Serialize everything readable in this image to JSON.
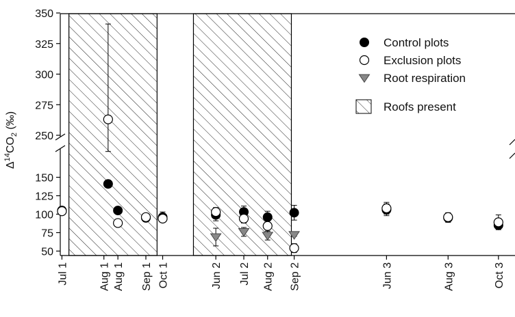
{
  "chart_data": {
    "type": "scatter",
    "title": "",
    "ylabel": "Δ14CO2 (‰)",
    "ylabel_parts": [
      "Δ",
      "14",
      "CO",
      "2",
      " (‰)"
    ],
    "xlabel": "",
    "axis_break": true,
    "y_segments": [
      {
        "range": [
          45,
          155
        ],
        "ticks": [
          50,
          75,
          100,
          125,
          150
        ]
      },
      {
        "range": [
          245,
          350
        ],
        "ticks": [
          250,
          275,
          300,
          325,
          350
        ]
      }
    ],
    "x_ticks": [
      {
        "label": "Jul 1",
        "x": 1
      },
      {
        "label": "Aug 1",
        "x": 4
      },
      {
        "label": "Aug 1",
        "x": 5
      },
      {
        "label": "Sep 1",
        "x": 7
      },
      {
        "label": "Oct 1",
        "x": 8.2
      },
      {
        "label": "Jun 2",
        "x": 12
      },
      {
        "label": "Jul 2",
        "x": 14
      },
      {
        "label": "Aug 2",
        "x": 15.7
      },
      {
        "label": "Sep 2",
        "x": 17.6
      },
      {
        "label": "Jun 3",
        "x": 24.2
      },
      {
        "label": "Aug 3",
        "x": 28.6
      },
      {
        "label": "Oct 3",
        "x": 32.2
      }
    ],
    "x_range": [
      0,
      32.6
    ],
    "shaded_regions": [
      {
        "label": "Roofs present",
        "x0": 1.5,
        "x1": 7.8
      },
      {
        "label": "Roofs present",
        "x0": 10.4,
        "x1": 17.4
      }
    ],
    "series": [
      {
        "name": "Control plots",
        "marker": "filled-circle",
        "color": "#000000",
        "points": [
          {
            "x": 1,
            "y": 105,
            "err": 5
          },
          {
            "x": 4.3,
            "y": 141,
            "err": 5
          },
          {
            "x": 5,
            "y": 105,
            "err": 2
          },
          {
            "x": 7,
            "y": 95,
            "err": 5
          },
          {
            "x": 8.2,
            "y": 96,
            "err": 7
          },
          {
            "x": 12,
            "y": 99,
            "err": 8
          },
          {
            "x": 14,
            "y": 103,
            "err": 8
          },
          {
            "x": 15.7,
            "y": 96,
            "err": 8
          },
          {
            "x": 17.6,
            "y": 102,
            "err": 10
          },
          {
            "x": 24.2,
            "y": 106,
            "err": 8
          },
          {
            "x": 28.6,
            "y": 95,
            "err": 6
          },
          {
            "x": 32.2,
            "y": 85,
            "err": 3
          }
        ]
      },
      {
        "name": "Exclusion plots",
        "marker": "open-circle",
        "color": "#000000",
        "points": [
          {
            "x": 1,
            "y": 104,
            "err": 4
          },
          {
            "x": 4.3,
            "y": 263,
            "err": 78
          },
          {
            "x": 5,
            "y": 88,
            "err": 1
          },
          {
            "x": 7,
            "y": 96,
            "err": 3
          },
          {
            "x": 8.2,
            "y": 94,
            "err": 5
          },
          {
            "x": 12,
            "y": 103,
            "err": 6
          },
          {
            "x": 14,
            "y": 94,
            "err": 6
          },
          {
            "x": 15.7,
            "y": 84,
            "err": 7
          },
          {
            "x": 17.6,
            "y": 54,
            "err": 6
          },
          {
            "x": 24.2,
            "y": 108,
            "err": 8
          },
          {
            "x": 28.6,
            "y": 96,
            "err": 6
          },
          {
            "x": 32.2,
            "y": 89,
            "err": 10
          }
        ]
      },
      {
        "name": "Root respiration",
        "marker": "triangle-down",
        "color": "#888888",
        "points": [
          {
            "x": 12,
            "y": 69,
            "err": 12
          },
          {
            "x": 14,
            "y": 76,
            "err": 6
          },
          {
            "x": 15.7,
            "y": 71,
            "err": 6
          },
          {
            "x": 17.6,
            "y": 72,
            "err": 2
          }
        ]
      }
    ],
    "legend": {
      "placement": "top-right",
      "entries": [
        "Control plots",
        "Exclusion plots",
        "Root respiration",
        "Roofs present"
      ]
    },
    "grid": false
  }
}
